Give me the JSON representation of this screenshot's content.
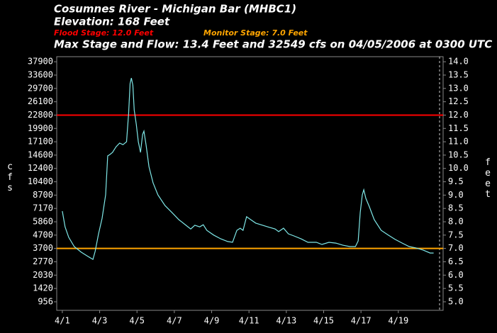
{
  "chart_data": {
    "type": "line",
    "title": "Cosumnes River - Michigan Bar (MHBC1)",
    "subtitle": "Elevation: 168 Feet",
    "max_note": "Max Stage and Flow: 13.4 Feet and 32549 cfs on 04/05/2006 at 0300 UTC",
    "y_label": "feet",
    "y2_label": "cfs",
    "flood_stage": {
      "label": "Flood Stage: 12.0 Feet",
      "value": 12,
      "color": "#ff0000"
    },
    "monitor_stage": {
      "label": "Monitor Stage: 7.0 Feet",
      "value": 7,
      "color": "#ffa500"
    },
    "color": "#7fe8e8",
    "xlim": [
      -0.3,
      20.4
    ],
    "xticks": [
      {
        "value": 0,
        "label": "4/1"
      },
      {
        "value": 2,
        "label": "4/3"
      },
      {
        "value": 4,
        "label": "4/5"
      },
      {
        "value": 6,
        "label": "4/7"
      },
      {
        "value": 8,
        "label": "4/9"
      },
      {
        "value": 10,
        "label": "4/11"
      },
      {
        "value": 12,
        "label": "4/13"
      },
      {
        "value": 14,
        "label": "4/15"
      },
      {
        "value": 16,
        "label": "4/17"
      },
      {
        "value": 18,
        "label": "4/19"
      }
    ],
    "ylim": [
      4.68,
      14.19
    ],
    "yticks": [
      {
        "value": 5,
        "label": "5.0"
      },
      5.5,
      {
        "value": 6,
        "label": "6.0"
      },
      6.5,
      {
        "value": 7,
        "label": "7.0"
      },
      7.5,
      {
        "value": 8,
        "label": "8.0"
      },
      8.5,
      {
        "value": 9,
        "label": "9.0"
      },
      9.5,
      {
        "value": 10,
        "label": "10.0"
      },
      10.5,
      {
        "value": 11,
        "label": "11.0"
      },
      11.5,
      {
        "value": 12,
        "label": "12.0"
      },
      12.5,
      {
        "value": 13,
        "label": "13.0"
      },
      13.5,
      {
        "value": 14,
        "label": "14.0"
      }
    ],
    "y2ticks": [
      956,
      1420,
      2030,
      2770,
      3700,
      4700,
      5860,
      7170,
      8700,
      10400,
      12400,
      14600,
      17100,
      19900,
      22800,
      26100,
      29700,
      33600,
      37900
    ],
    "x": [
      0,
      0.15,
      0.34,
      0.64,
      1.01,
      1.38,
      1.64,
      1.76,
      1.94,
      2.13,
      2.32,
      2.43,
      2.54,
      2.69,
      2.88,
      3.07,
      3.25,
      3.44,
      3.55,
      3.63,
      3.7,
      3.78,
      3.85,
      3.96,
      4.07,
      4.19,
      4.3,
      4.37,
      4.49,
      4.64,
      4.86,
      5.12,
      5.5,
      5.87,
      6.24,
      6.62,
      6.88,
      7.1,
      7.36,
      7.55,
      7.74,
      8.11,
      8.49,
      8.86,
      9.12,
      9.35,
      9.53,
      9.68,
      9.87,
      10.09,
      10.36,
      10.73,
      11.1,
      11.4,
      11.59,
      11.85,
      12.11,
      12.41,
      12.79,
      13.16,
      13.61,
      13.91,
      14.28,
      14.65,
      15.03,
      15.4,
      15.7,
      15.85,
      15.96,
      16.07,
      16.15,
      16.26,
      16.45,
      16.71,
      17.08,
      17.46,
      17.83,
      18.21,
      18.58,
      18.95,
      19.33,
      19.7,
      19.89
    ],
    "values": [
      8.4,
      7.81,
      7.42,
      7.07,
      6.86,
      6.7,
      6.59,
      6.89,
      7.55,
      8.13,
      9.01,
      10.47,
      10.52,
      10.6,
      10.81,
      10.95,
      10.89,
      11.0,
      12.06,
      13.18,
      13.39,
      13.12,
      12.19,
      11.66,
      11.0,
      10.6,
      11.27,
      11.4,
      10.87,
      10.07,
      9.46,
      9.01,
      8.61,
      8.35,
      8.08,
      7.87,
      7.73,
      7.87,
      7.81,
      7.89,
      7.68,
      7.5,
      7.36,
      7.26,
      7.23,
      7.68,
      7.76,
      7.68,
      8.19,
      8.08,
      7.95,
      7.87,
      7.79,
      7.73,
      7.63,
      7.76,
      7.55,
      7.47,
      7.36,
      7.23,
      7.23,
      7.15,
      7.23,
      7.2,
      7.12,
      7.07,
      7.07,
      7.28,
      8.35,
      9.01,
      9.2,
      8.88,
      8.56,
      8.08,
      7.68,
      7.5,
      7.34,
      7.2,
      7.07,
      7.02,
      6.94,
      6.83,
      6.83
    ]
  }
}
